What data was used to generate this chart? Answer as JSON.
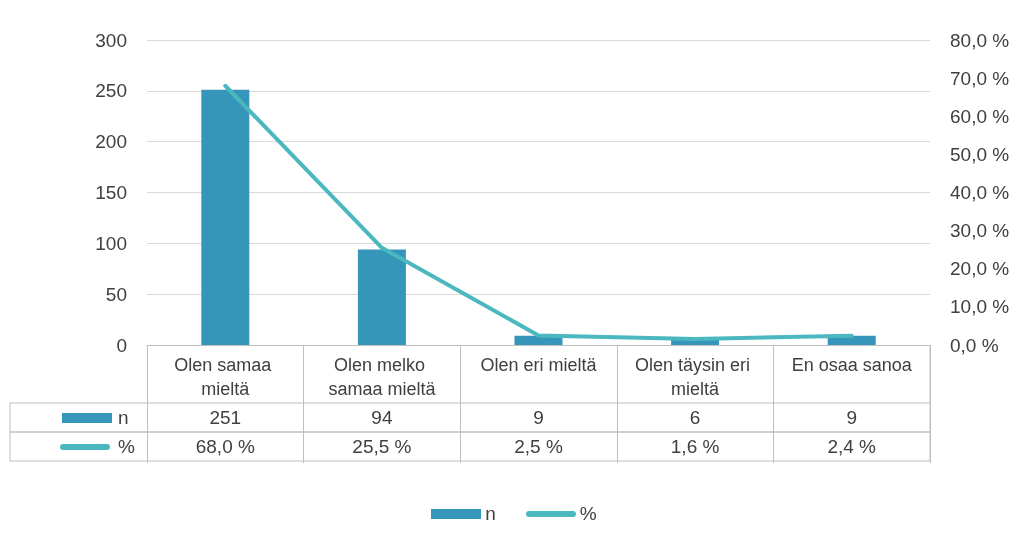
{
  "chart_data": {
    "type": "bar",
    "categories": [
      "Olen samaa mieltä",
      "Olen melko samaa mieltä",
      "Olen eri mieltä",
      "Olen täysin eri mieltä",
      "En osaa sanoa"
    ],
    "series": [
      {
        "name": "n",
        "color": "#3596b9",
        "values": [
          251,
          94,
          9,
          6,
          9
        ],
        "value_labels": [
          "251",
          "94",
          "9",
          "6",
          "9"
        ]
      },
      {
        "name": "%",
        "type": "line",
        "axis": "y2",
        "color": "#4bb8c0",
        "values": [
          68.0,
          25.5,
          2.5,
          1.6,
          2.4
        ],
        "value_labels": [
          "68,0 %",
          "25,5 %",
          "2,5 %",
          "1,6 %",
          "2,4 %"
        ]
      }
    ],
    "ylim": [
      0,
      300
    ],
    "yticks": [
      0,
      50,
      100,
      150,
      200,
      250,
      300
    ],
    "y2lim": [
      0,
      80
    ],
    "y2ticks": [
      {
        "value": 0,
        "label": "0,0 %"
      },
      {
        "value": 10,
        "label": "10,0 %"
      },
      {
        "value": 20,
        "label": "20,0 %"
      },
      {
        "value": 30,
        "label": "30,0 %"
      },
      {
        "value": 40,
        "label": "40,0 %"
      },
      {
        "value": 50,
        "label": "50,0 %"
      },
      {
        "value": 60,
        "label": "60,0 %"
      },
      {
        "value": 70,
        "label": "70,0 %"
      },
      {
        "value": 80,
        "label": "80,0 %"
      }
    ],
    "grid": "y",
    "legend": "bottom",
    "line_style": "solid",
    "marker": "none"
  }
}
